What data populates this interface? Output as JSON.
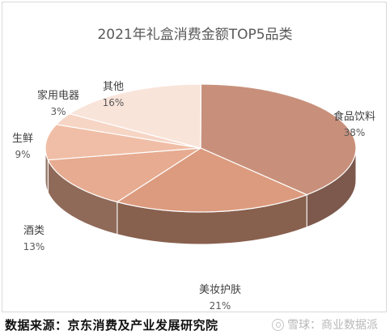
{
  "chart_data": {
    "type": "pie",
    "title": "2021年礼盒消费金额TOP5品类",
    "slices": [
      {
        "label": "食品饮料",
        "value": 38,
        "display": "38%",
        "color": "#c8907b"
      },
      {
        "label": "美妆护肤",
        "value": 21,
        "display": "21%",
        "color": "#dc9b7e"
      },
      {
        "label": "酒类",
        "value": 13,
        "display": "13%",
        "color": "#e6ab90"
      },
      {
        "label": "生鲜",
        "value": 9,
        "display": "9%",
        "color": "#f0bea6"
      },
      {
        "label": "家用电器",
        "value": 3,
        "display": "3%",
        "color": "#f6d5c5"
      },
      {
        "label": "其他",
        "value": 16,
        "display": "16%",
        "color": "#f9e4da"
      }
    ],
    "legend": "none",
    "style": "3d"
  },
  "footer": {
    "source": "数据来源：京东消费及产业发展研究院",
    "watermark": "雪球：商业数据派"
  }
}
